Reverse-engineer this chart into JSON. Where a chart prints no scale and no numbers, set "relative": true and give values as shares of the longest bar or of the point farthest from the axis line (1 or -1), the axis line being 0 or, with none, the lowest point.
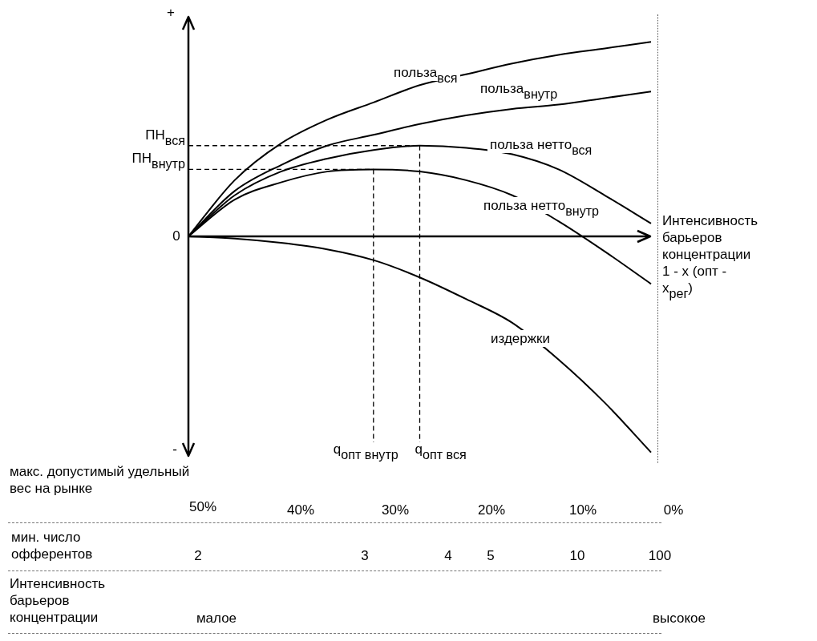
{
  "chart_data": {
    "type": "line",
    "relative": true,
    "xlabel": "Интенсивность барьеров концентрации 1 - x (опт - x$_{рег}$)",
    "categories": [
      null,
      null,
      null,
      null,
      null,
      null,
      null,
      null,
      null,
      null,
      null
    ],
    "series": [
      {
        "name": "польза$_{вся}$",
        "color": "#000000",
        "values": [
          0,
          0.26,
          0.43,
          0.54,
          0.62,
          0.7,
          0.75,
          0.8,
          0.84,
          0.87,
          0.9
        ]
      },
      {
        "name": "польза$_{внутр}$",
        "color": "#000000",
        "values": [
          0,
          0.21,
          0.33,
          0.42,
          0.47,
          0.52,
          0.56,
          0.59,
          0.61,
          0.64,
          0.67
        ]
      },
      {
        "name": "польза нетто$_{вся}$",
        "color": "#000000",
        "values": [
          0,
          0.19,
          0.3,
          0.36,
          0.4,
          0.42,
          0.41,
          0.38,
          0.31,
          0.19,
          0.06
        ]
      },
      {
        "name": "польза нетто$_{внутр}$",
        "color": "#000000",
        "values": [
          0,
          0.17,
          0.25,
          0.3,
          0.31,
          0.3,
          0.26,
          0.19,
          0.07,
          -0.07,
          -0.22
        ]
      },
      {
        "name": "издержки",
        "color": "#000000",
        "values": [
          0,
          -0.01,
          -0.03,
          -0.06,
          -0.11,
          -0.19,
          -0.29,
          -0.4,
          -0.57,
          -0.77,
          -1
        ]
      }
    ],
    "ref_lines": [
      {
        "axis": "y",
        "value": 0.42,
        "label": "ПН$_{вся}$",
        "line_style": "dashed"
      },
      {
        "axis": "y",
        "value": 0.31,
        "label": "ПН$_{внутр}$",
        "line_style": "dashed"
      }
    ],
    "annotations": [
      "+",
      "0",
      "-",
      "макс. допустимый удельный вес на рынке",
      "50%",
      "40%",
      "30%",
      "20%",
      "10%",
      "0%",
      "мин. число офферентов",
      "2",
      "3",
      "4",
      "5",
      "10",
      "100",
      "Интенсивность барьеров концентрации",
      "малое",
      "высокое",
      "q$_{опт вся}$",
      "q$_{опт внутр}$"
    ],
    "legend": false,
    "marker": "none",
    "line_style": "solid"
  }
}
